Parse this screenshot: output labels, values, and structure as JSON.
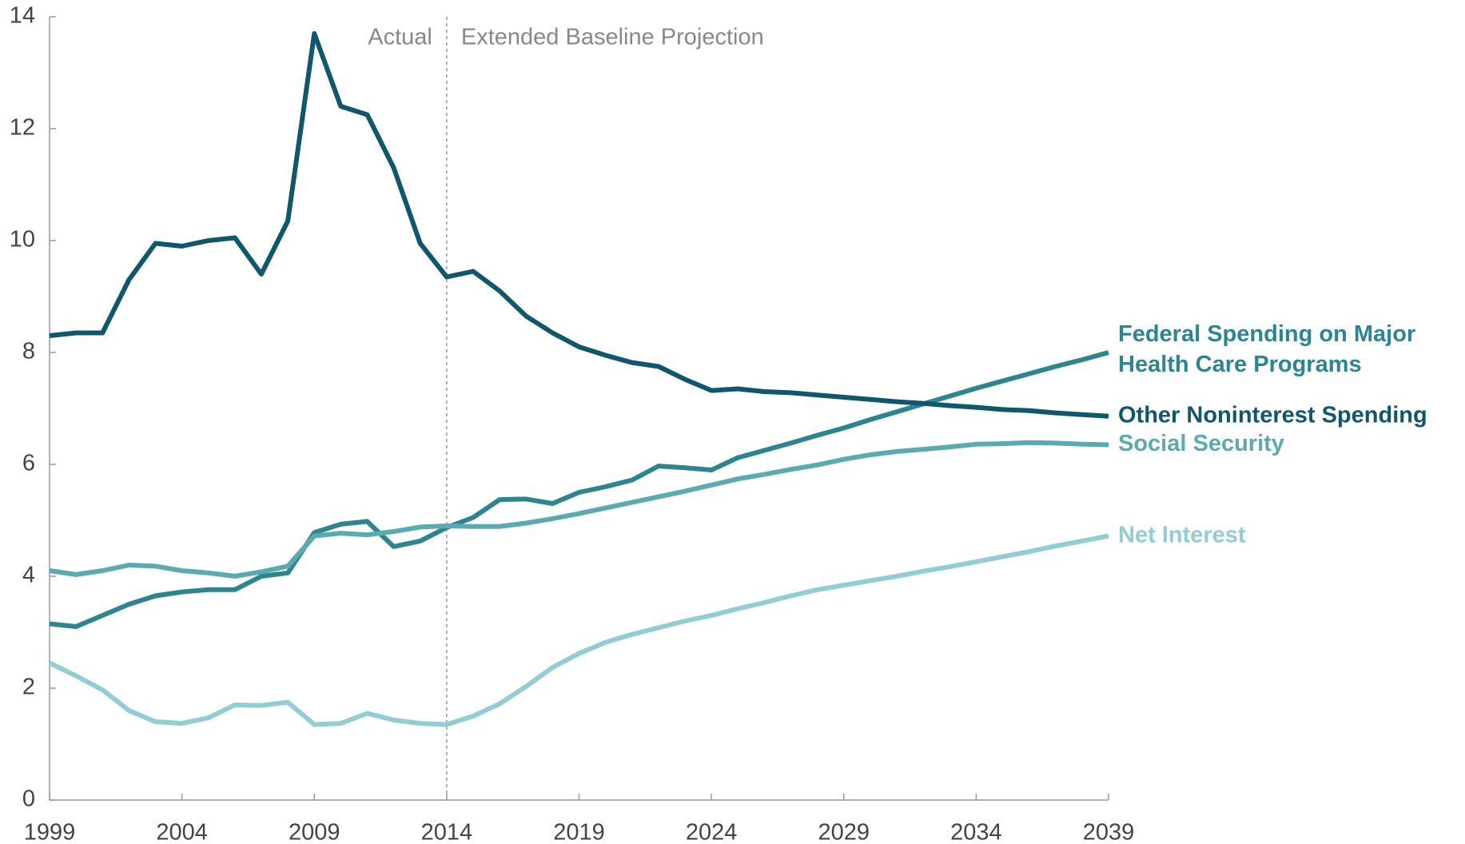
{
  "chart_data": {
    "type": "line",
    "annotations": [
      "Actual",
      "Extended Baseline Projection"
    ],
    "divider_x": 2014,
    "x": [
      1999,
      2000,
      2001,
      2002,
      2003,
      2004,
      2005,
      2006,
      2007,
      2008,
      2009,
      2010,
      2011,
      2012,
      2013,
      2014,
      2015,
      2016,
      2017,
      2018,
      2019,
      2020,
      2021,
      2022,
      2023,
      2024,
      2025,
      2026,
      2027,
      2028,
      2029,
      2030,
      2031,
      2032,
      2033,
      2034,
      2035,
      2036,
      2037,
      2038,
      2039
    ],
    "series": [
      {
        "name": "Federal Spending on Major Health Care Programs",
        "color": "#2d8590",
        "values": [
          3.15,
          3.1,
          3.3,
          3.5,
          3.65,
          3.72,
          3.76,
          3.76,
          4.0,
          4.06,
          4.78,
          4.93,
          4.98,
          4.53,
          4.63,
          4.87,
          5.05,
          5.37,
          5.38,
          5.3,
          5.5,
          5.6,
          5.72,
          5.97,
          5.94,
          5.9,
          6.12,
          6.25,
          6.38,
          6.52,
          6.65,
          6.8,
          6.94,
          7.08,
          7.22,
          7.36,
          7.49,
          7.62,
          7.75,
          7.87,
          8.0
        ]
      },
      {
        "name": "Other Noninterest Spending",
        "color": "#11576b",
        "values": [
          8.3,
          8.35,
          8.35,
          9.3,
          9.95,
          9.9,
          10.0,
          10.05,
          9.4,
          10.35,
          13.7,
          12.4,
          12.25,
          11.3,
          9.95,
          9.35,
          9.45,
          9.1,
          8.65,
          8.35,
          8.1,
          7.95,
          7.82,
          7.75,
          7.52,
          7.32,
          7.35,
          7.3,
          7.28,
          7.24,
          7.2,
          7.16,
          7.12,
          7.09,
          7.05,
          7.02,
          6.98,
          6.96,
          6.92,
          6.89,
          6.86
        ]
      },
      {
        "name": "Social Security",
        "color": "#5aaab0",
        "values": [
          4.1,
          4.03,
          4.1,
          4.2,
          4.18,
          4.1,
          4.06,
          4.0,
          4.08,
          4.18,
          4.72,
          4.77,
          4.74,
          4.8,
          4.88,
          4.9,
          4.89,
          4.89,
          4.95,
          5.03,
          5.12,
          5.22,
          5.32,
          5.42,
          5.52,
          5.63,
          5.74,
          5.82,
          5.91,
          5.99,
          6.09,
          6.17,
          6.23,
          6.27,
          6.31,
          6.36,
          6.37,
          6.39,
          6.38,
          6.36,
          6.35
        ]
      },
      {
        "name": "Net Interest",
        "color": "#92cdd3",
        "values": [
          2.45,
          2.22,
          1.97,
          1.6,
          1.4,
          1.37,
          1.47,
          1.7,
          1.69,
          1.75,
          1.35,
          1.37,
          1.55,
          1.43,
          1.37,
          1.35,
          1.5,
          1.72,
          2.03,
          2.37,
          2.62,
          2.82,
          2.96,
          3.08,
          3.2,
          3.3,
          3.42,
          3.53,
          3.65,
          3.76,
          3.84,
          3.92,
          4.0,
          4.09,
          4.17,
          4.26,
          4.35,
          4.44,
          4.54,
          4.63,
          4.72
        ]
      }
    ],
    "xlim": [
      1999,
      2039
    ],
    "xticks": [
      1999,
      2004,
      2009,
      2014,
      2019,
      2024,
      2029,
      2034,
      2039
    ],
    "ylim": [
      0,
      14
    ],
    "yticks": [
      0,
      2,
      4,
      6,
      8,
      10,
      12,
      14
    ],
    "grid": false
  }
}
